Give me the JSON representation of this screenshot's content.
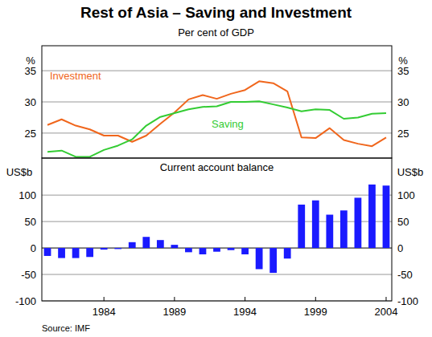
{
  "chart_data": [
    {
      "type": "line",
      "title": "Rest of Asia – Saving and Investment",
      "subtitle": "Per cent of GDP",
      "y_label": "%",
      "x": [
        1980,
        1981,
        1982,
        1983,
        1984,
        1985,
        1986,
        1987,
        1988,
        1989,
        1990,
        1991,
        1992,
        1993,
        1994,
        1995,
        1996,
        1997,
        1998,
        1999,
        2000,
        2001,
        2002,
        2003,
        2004
      ],
      "xlim": [
        1979.6,
        2004.4
      ],
      "series": [
        {
          "name": "Investment",
          "color": "#f0661c",
          "values": [
            26.3,
            27.2,
            26.2,
            25.6,
            24.6,
            24.6,
            23.6,
            24.6,
            26.5,
            28.3,
            30.4,
            31.1,
            30.5,
            31.3,
            31.9,
            33.3,
            33.0,
            31.7,
            24.3,
            24.2,
            25.8,
            23.9,
            23.3,
            22.9,
            24.3
          ]
        },
        {
          "name": "Saving",
          "color": "#33cc33",
          "values": [
            22.0,
            22.2,
            21.2,
            21.2,
            22.3,
            23.0,
            24.0,
            26.2,
            27.6,
            28.2,
            28.8,
            29.2,
            29.3,
            30.0,
            30.0,
            30.1,
            29.6,
            29.1,
            28.5,
            28.8,
            28.7,
            27.3,
            27.5,
            28.1,
            28.2
          ]
        }
      ],
      "ylim": [
        21,
        39
      ],
      "yticks": [
        25,
        30,
        35
      ],
      "grid": true,
      "tick_labels": "y"
    },
    {
      "type": "bar",
      "title": "Current account balance",
      "y_label": "US$b",
      "source": "Source: IMF",
      "x": [
        1980,
        1981,
        1982,
        1983,
        1984,
        1985,
        1986,
        1987,
        1988,
        1989,
        1990,
        1991,
        1992,
        1993,
        1994,
        1995,
        1996,
        1997,
        1998,
        1999,
        2000,
        2001,
        2002,
        2003,
        2004
      ],
      "values": [
        -15,
        -19,
        -19,
        -17,
        -3,
        -2,
        11,
        21,
        15,
        6,
        -8,
        -12,
        -7,
        -4,
        -12,
        -40,
        -47,
        -20,
        82,
        90,
        63,
        71,
        95,
        120,
        118
      ],
      "color": "#1a1aff",
      "xlim": [
        1979.6,
        2004.4
      ],
      "xticks": [
        1984,
        1989,
        1994,
        1999,
        2004
      ],
      "ylim": [
        -100,
        170
      ],
      "yticks": [
        -100,
        -50,
        0,
        50,
        100
      ],
      "grid": true
    }
  ]
}
